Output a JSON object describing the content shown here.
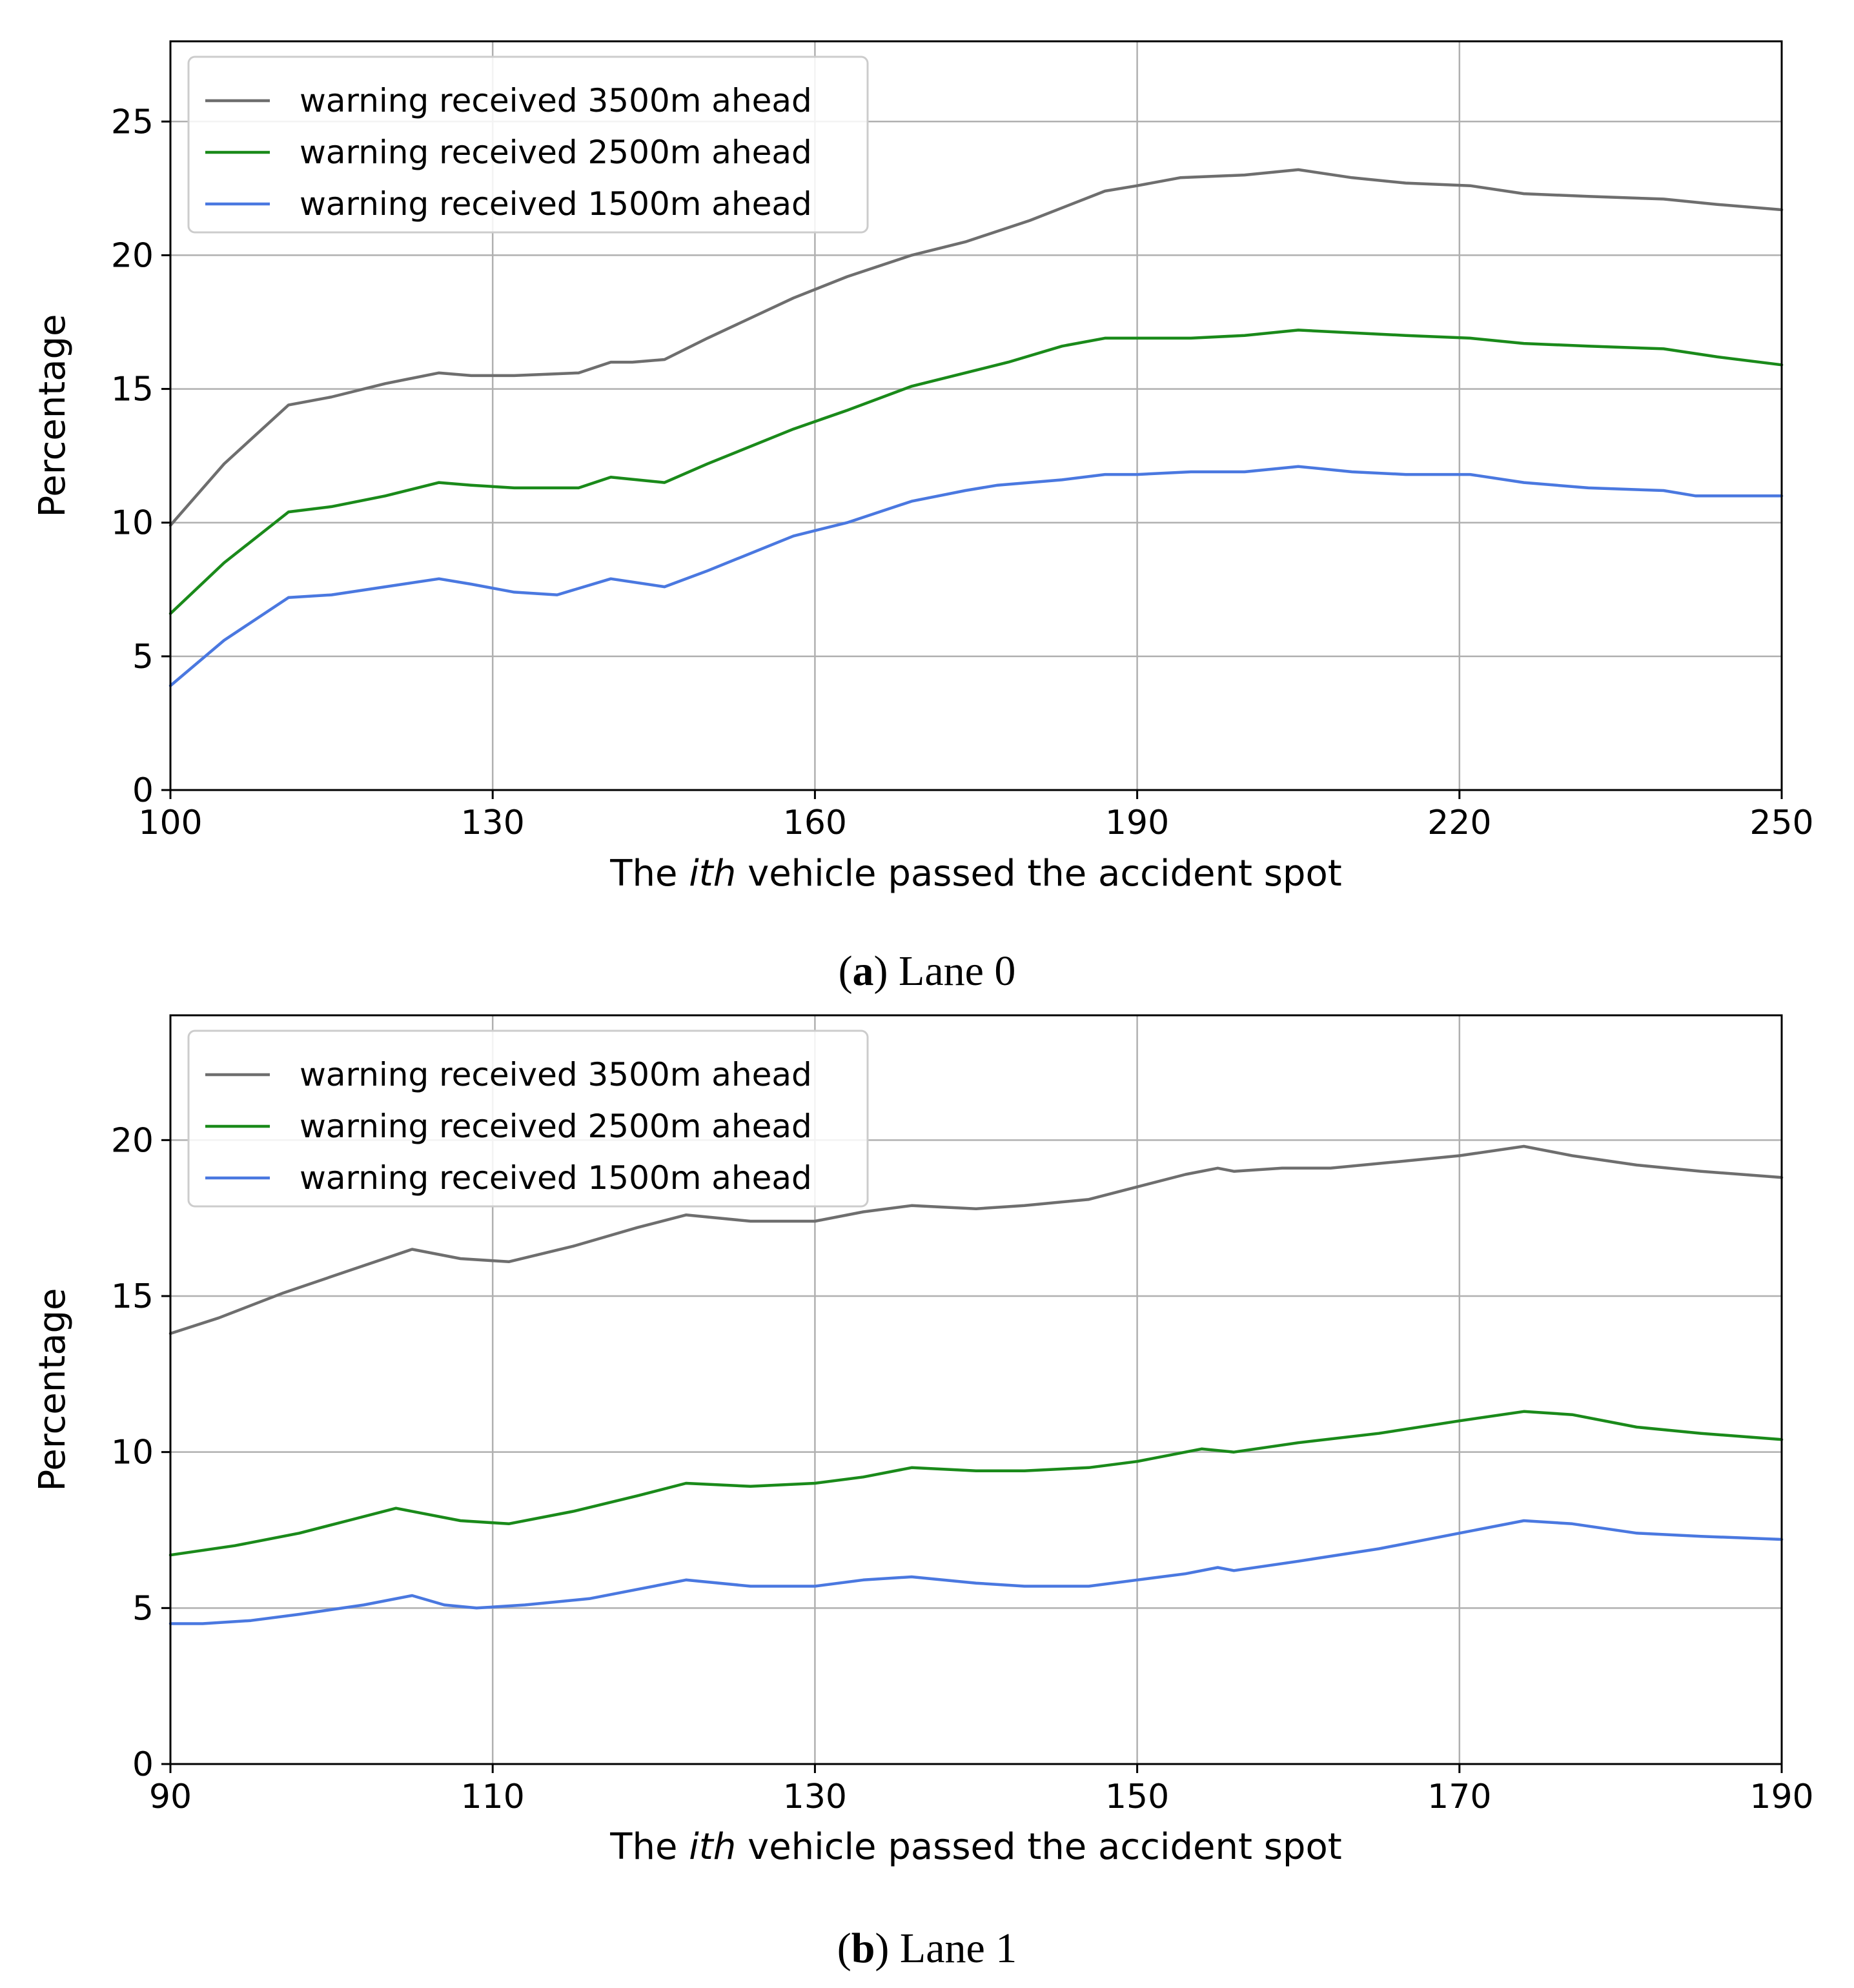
{
  "chart_data": [
    {
      "type": "line",
      "id": "a",
      "caption_letter": "a",
      "caption_text": ") Lane 0",
      "caption_open": "(",
      "xlabel_pre": "The ",
      "xlabel_italic": "ith",
      "xlabel_post": " vehicle passed the accident spot",
      "ylabel": "Percentage",
      "xlim": [
        100,
        250
      ],
      "ylim": [
        0,
        28
      ],
      "xticks": [
        100,
        130,
        160,
        190,
        220,
        250
      ],
      "yticks": [
        0,
        5,
        10,
        15,
        20,
        25
      ],
      "grid": true,
      "legend_position": "top-left",
      "series": [
        {
          "name": "warning received 3500m ahead",
          "color": "#6e6e6e",
          "x": [
            100,
            105,
            111,
            115,
            120,
            125,
            128,
            132,
            138,
            141,
            143,
            146,
            150,
            158,
            163,
            169,
            174,
            180,
            187,
            190,
            194,
            200,
            205,
            210,
            215,
            221,
            226,
            232,
            239,
            244,
            250
          ],
          "y": [
            9.9,
            12.2,
            14.4,
            14.7,
            15.2,
            15.6,
            15.5,
            15.5,
            15.6,
            16.0,
            16.0,
            16.1,
            16.9,
            18.4,
            19.2,
            20.0,
            20.5,
            21.3,
            22.4,
            22.6,
            22.9,
            23.0,
            23.2,
            22.9,
            22.7,
            22.6,
            22.3,
            22.2,
            22.1,
            21.9,
            21.7
          ]
        },
        {
          "name": "warning received 2500m ahead",
          "color": "#1a8a1a",
          "x": [
            100,
            105,
            111,
            115,
            120,
            125,
            128,
            132,
            138,
            141,
            146,
            150,
            158,
            163,
            169,
            174,
            178,
            183,
            187,
            190,
            195,
            200,
            205,
            210,
            215,
            221,
            226,
            232,
            239,
            244,
            250
          ],
          "y": [
            6.6,
            8.5,
            10.4,
            10.6,
            11.0,
            11.5,
            11.4,
            11.3,
            11.3,
            11.7,
            11.5,
            12.2,
            13.5,
            14.2,
            15.1,
            15.6,
            16.0,
            16.6,
            16.9,
            16.9,
            16.9,
            17.0,
            17.2,
            17.1,
            17.0,
            16.9,
            16.7,
            16.6,
            16.5,
            16.2,
            15.9
          ]
        },
        {
          "name": "warning received 1500m ahead",
          "color": "#4a78e0",
          "x": [
            100,
            105,
            111,
            115,
            120,
            125,
            128,
            132,
            136,
            141,
            146,
            150,
            158,
            163,
            169,
            174,
            177,
            183,
            187,
            190,
            195,
            200,
            205,
            210,
            215,
            221,
            226,
            232,
            239,
            242,
            250
          ],
          "y": [
            3.9,
            5.6,
            7.2,
            7.3,
            7.6,
            7.9,
            7.7,
            7.4,
            7.3,
            7.9,
            7.6,
            8.2,
            9.5,
            10.0,
            10.8,
            11.2,
            11.4,
            11.6,
            11.8,
            11.8,
            11.9,
            11.9,
            12.1,
            11.9,
            11.8,
            11.8,
            11.5,
            11.3,
            11.2,
            11.0,
            11.0
          ]
        }
      ]
    },
    {
      "type": "line",
      "id": "b",
      "caption_letter": "b",
      "caption_text": ") Lane 1",
      "caption_open": "(",
      "xlabel_pre": "The ",
      "xlabel_italic": "ith",
      "xlabel_post": " vehicle passed the accident spot",
      "ylabel": "Percentage",
      "xlim": [
        90,
        190
      ],
      "ylim": [
        0,
        24
      ],
      "xticks": [
        90,
        110,
        130,
        150,
        170,
        190
      ],
      "yticks": [
        0,
        5,
        10,
        15,
        20
      ],
      "grid": true,
      "legend_position": "top-left",
      "series": [
        {
          "name": "warning received 3500m ahead",
          "color": "#6e6e6e",
          "x": [
            90,
            93,
            97,
            101,
            105,
            108,
            111,
            115,
            119,
            122,
            126,
            130,
            133,
            136,
            140,
            143,
            147,
            150,
            153,
            155,
            156,
            159,
            162,
            166,
            170,
            174,
            177,
            181,
            185,
            190
          ],
          "y": [
            13.8,
            14.3,
            15.1,
            15.8,
            16.5,
            16.2,
            16.1,
            16.6,
            17.2,
            17.6,
            17.4,
            17.4,
            17.7,
            17.9,
            17.8,
            17.9,
            18.1,
            18.5,
            18.9,
            19.1,
            19.0,
            19.1,
            19.1,
            19.3,
            19.5,
            19.8,
            19.5,
            19.2,
            19.0,
            18.8
          ]
        },
        {
          "name": "warning received 2500m ahead",
          "color": "#1a8a1a",
          "x": [
            90,
            94,
            98,
            101,
            104,
            108,
            111,
            115,
            119,
            122,
            126,
            130,
            133,
            136,
            140,
            143,
            147,
            150,
            154,
            156,
            160,
            165,
            170,
            174,
            177,
            181,
            185,
            190
          ],
          "y": [
            6.7,
            7.0,
            7.4,
            7.8,
            8.2,
            7.8,
            7.7,
            8.1,
            8.6,
            9.0,
            8.9,
            9.0,
            9.2,
            9.5,
            9.4,
            9.4,
            9.5,
            9.7,
            10.1,
            10.0,
            10.3,
            10.6,
            11.0,
            11.3,
            11.2,
            10.8,
            10.6,
            10.4
          ]
        },
        {
          "name": "warning received 1500m ahead",
          "color": "#4a78e0",
          "x": [
            90,
            92,
            95,
            98,
            102,
            105,
            107,
            109,
            112,
            116,
            119,
            122,
            126,
            130,
            133,
            136,
            140,
            143,
            147,
            150,
            153,
            155,
            156,
            160,
            165,
            170,
            174,
            177,
            181,
            185,
            190
          ],
          "y": [
            4.5,
            4.5,
            4.6,
            4.8,
            5.1,
            5.4,
            5.1,
            5.0,
            5.1,
            5.3,
            5.6,
            5.9,
            5.7,
            5.7,
            5.9,
            6.0,
            5.8,
            5.7,
            5.7,
            5.9,
            6.1,
            6.3,
            6.2,
            6.5,
            6.9,
            7.4,
            7.8,
            7.7,
            7.4,
            7.3,
            7.2
          ]
        }
      ]
    }
  ]
}
